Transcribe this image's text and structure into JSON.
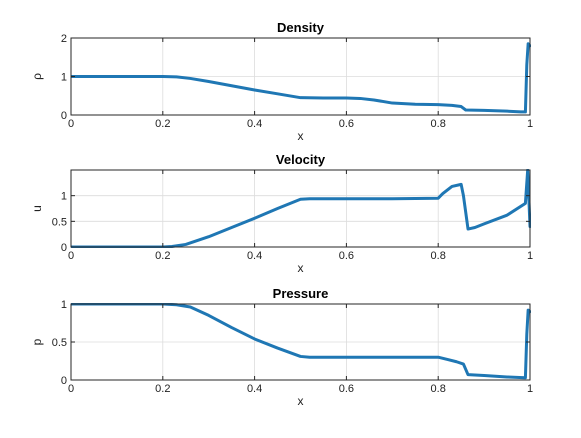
{
  "colors": {
    "series": "#1f77b4",
    "grid": "#dcdcdc",
    "axis": "#262626"
  },
  "chart_data": [
    {
      "type": "line",
      "title": "Density",
      "xlabel": "x",
      "ylabel": "ρ",
      "xlim": [
        0,
        1
      ],
      "ylim": [
        0,
        2
      ],
      "xticks": [
        0,
        0.2,
        0.4,
        0.6,
        0.8,
        1
      ],
      "xtick_labels": [
        "0",
        "0.2",
        "0.4",
        "0.6",
        "0.8",
        "1"
      ],
      "yticks": [
        0,
        1,
        2
      ],
      "ytick_labels": [
        "0",
        "1",
        "2"
      ],
      "grid": true,
      "series": [
        {
          "name": "rho",
          "x": [
            0,
            0.1,
            0.2,
            0.23,
            0.26,
            0.3,
            0.35,
            0.4,
            0.45,
            0.5,
            0.55,
            0.6,
            0.63,
            0.66,
            0.7,
            0.75,
            0.8,
            0.83,
            0.85,
            0.86,
            0.9,
            0.95,
            0.98,
            0.99,
            0.993,
            0.996,
            1.0
          ],
          "y": [
            1.0,
            1.0,
            1.0,
            0.99,
            0.95,
            0.87,
            0.76,
            0.65,
            0.55,
            0.45,
            0.44,
            0.44,
            0.43,
            0.39,
            0.31,
            0.28,
            0.27,
            0.25,
            0.22,
            0.13,
            0.12,
            0.1,
            0.08,
            0.08,
            1.3,
            1.85,
            1.8
          ]
        }
      ]
    },
    {
      "type": "line",
      "title": "Velocity",
      "xlabel": "x",
      "ylabel": "u",
      "xlim": [
        0,
        1
      ],
      "ylim": [
        0,
        1.5
      ],
      "xticks": [
        0,
        0.2,
        0.4,
        0.6,
        0.8,
        1
      ],
      "xtick_labels": [
        "0",
        "0.2",
        "0.4",
        "0.6",
        "0.8",
        "1"
      ],
      "yticks": [
        0,
        0.5,
        1
      ],
      "ytick_labels": [
        "0",
        "0.5",
        "1"
      ],
      "grid": true,
      "series": [
        {
          "name": "u",
          "x": [
            0,
            0.1,
            0.2,
            0.22,
            0.25,
            0.3,
            0.35,
            0.4,
            0.45,
            0.5,
            0.52,
            0.6,
            0.7,
            0.8,
            0.81,
            0.83,
            0.85,
            0.855,
            0.865,
            0.88,
            0.9,
            0.95,
            0.99,
            0.995,
            1.0
          ],
          "y": [
            0,
            0,
            0,
            0.01,
            0.05,
            0.2,
            0.38,
            0.56,
            0.75,
            0.93,
            0.94,
            0.94,
            0.94,
            0.95,
            1.04,
            1.18,
            1.22,
            1.0,
            0.35,
            0.38,
            0.45,
            0.62,
            0.85,
            1.5,
            0.4
          ]
        }
      ]
    },
    {
      "type": "line",
      "title": "Pressure",
      "xlabel": "x",
      "ylabel": "p",
      "xlim": [
        0,
        1
      ],
      "ylim": [
        0,
        1
      ],
      "xticks": [
        0,
        0.2,
        0.4,
        0.6,
        0.8,
        1
      ],
      "xtick_labels": [
        "0",
        "0.2",
        "0.4",
        "0.6",
        "0.8",
        "1"
      ],
      "yticks": [
        0,
        0.5,
        1
      ],
      "ytick_labels": [
        "0",
        "0.5",
        "1"
      ],
      "grid": true,
      "series": [
        {
          "name": "p",
          "x": [
            0,
            0.1,
            0.2,
            0.23,
            0.26,
            0.3,
            0.35,
            0.4,
            0.45,
            0.5,
            0.52,
            0.6,
            0.7,
            0.8,
            0.82,
            0.84,
            0.855,
            0.865,
            0.9,
            0.95,
            0.99,
            0.993,
            0.996,
            1.0
          ],
          "y": [
            1.0,
            1.0,
            1.0,
            0.99,
            0.96,
            0.85,
            0.69,
            0.54,
            0.42,
            0.31,
            0.3,
            0.3,
            0.3,
            0.3,
            0.27,
            0.24,
            0.21,
            0.07,
            0.06,
            0.04,
            0.03,
            0.6,
            0.92,
            0.9
          ]
        }
      ]
    }
  ]
}
